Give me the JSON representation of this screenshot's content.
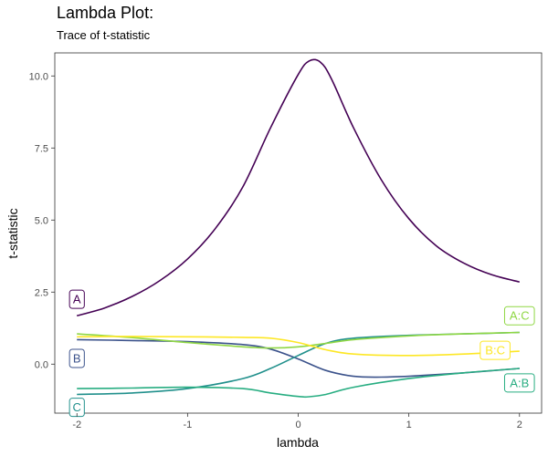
{
  "title": "Lambda Plot:",
  "subtitle": "Trace of t-statistic",
  "chart_data": {
    "type": "line",
    "xlabel": "lambda",
    "ylabel": "t-statistic",
    "xlim": [
      -2.2,
      2.2
    ],
    "ylim": [
      -1.7,
      10.8
    ],
    "xticks": [
      -2,
      -1,
      0,
      1,
      2
    ],
    "xtick_labels": [
      "-2",
      "-1",
      "0",
      "1",
      "2"
    ],
    "yticks": [
      0,
      2.5,
      5,
      7.5,
      10
    ],
    "ytick_labels": [
      "0.0",
      "2.5",
      "5.0",
      "7.5",
      "10.0"
    ],
    "grid": false,
    "legend": "direct labels",
    "series": [
      {
        "name": "A",
        "color": "#440154",
        "label_side": "left",
        "x": [
          -2,
          -1.75,
          -1.5,
          -1.25,
          -1,
          -0.75,
          -0.5,
          -0.25,
          0,
          0.1,
          0.2,
          0.3,
          0.5,
          0.75,
          1,
          1.25,
          1.5,
          1.75,
          2
        ],
        "y": [
          1.68,
          1.95,
          2.35,
          2.9,
          3.65,
          4.7,
          6.15,
          8.2,
          10.05,
          10.52,
          10.48,
          9.9,
          8.2,
          6.4,
          5.05,
          4.1,
          3.5,
          3.1,
          2.85
        ]
      },
      {
        "name": "B",
        "color": "#3b528b",
        "label_side": "left",
        "x": [
          -2,
          -1.5,
          -1,
          -0.5,
          -0.25,
          0,
          0.25,
          0.5,
          0.75,
          1,
          1.5,
          2
        ],
        "y": [
          0.85,
          0.82,
          0.78,
          0.68,
          0.52,
          0.18,
          -0.22,
          -0.42,
          -0.45,
          -0.42,
          -0.3,
          -0.15
        ]
      },
      {
        "name": "C",
        "color": "#21908c",
        "label_side": "left",
        "x": [
          -2,
          -1.5,
          -1,
          -0.5,
          -0.25,
          0,
          0.25,
          0.5,
          1,
          1.5,
          2
        ],
        "y": [
          -1.05,
          -1.0,
          -0.85,
          -0.5,
          -0.15,
          0.3,
          0.72,
          0.9,
          1.0,
          1.05,
          1.1
        ]
      },
      {
        "name": "A:B",
        "color": "#27ad81",
        "label_side": "right",
        "x": [
          -2,
          -1.5,
          -1,
          -0.5,
          -0.25,
          0,
          0.1,
          0.25,
          0.5,
          1,
          1.5,
          2
        ],
        "y": [
          -0.85,
          -0.83,
          -0.8,
          -0.85,
          -1.0,
          -1.12,
          -1.13,
          -1.05,
          -0.8,
          -0.5,
          -0.3,
          -0.15
        ]
      },
      {
        "name": "A:C",
        "color": "#8fd744",
        "label_side": "right",
        "x": [
          -2,
          -1.5,
          -1,
          -0.5,
          -0.25,
          0,
          0.25,
          0.5,
          1,
          1.5,
          2
        ],
        "y": [
          1.05,
          0.92,
          0.75,
          0.6,
          0.56,
          0.6,
          0.72,
          0.85,
          0.98,
          1.05,
          1.1
        ]
      },
      {
        "name": "B:C",
        "color": "#fde725",
        "label_side": "right",
        "x": [
          -2,
          -1.5,
          -1,
          -0.5,
          -0.25,
          0,
          0.25,
          0.5,
          1,
          1.5,
          2
        ],
        "y": [
          0.95,
          0.96,
          0.95,
          0.93,
          0.9,
          0.75,
          0.5,
          0.35,
          0.3,
          0.35,
          0.45
        ]
      }
    ],
    "labels": [
      {
        "text": "A",
        "series": 0,
        "x": -2,
        "y": 2.25
      },
      {
        "text": "B",
        "series": 1,
        "x": -2,
        "y": 0.2
      },
      {
        "text": "C",
        "series": 2,
        "x": -2,
        "y": -1.5
      },
      {
        "text": "A:C",
        "series": 4,
        "x": 2,
        "y": 1.68
      },
      {
        "text": "B:C",
        "series": 5,
        "x": 1.78,
        "y": 0.48
      },
      {
        "text": "A:B",
        "series": 3,
        "x": 2,
        "y": -0.65
      }
    ]
  }
}
